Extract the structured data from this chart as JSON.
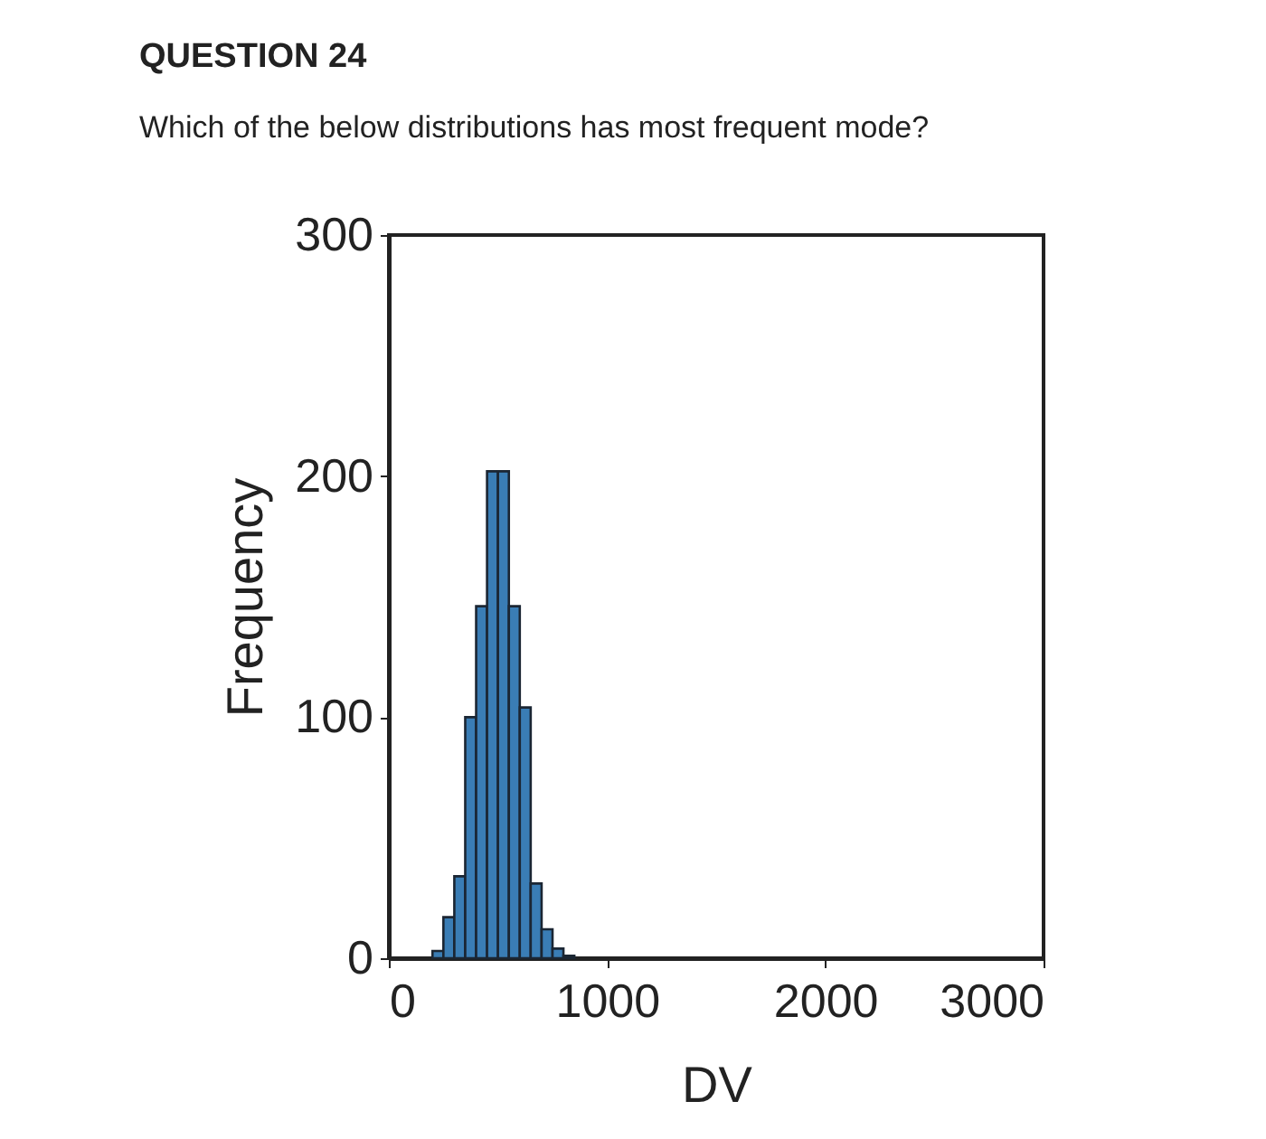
{
  "chart_data": {
    "type": "histogram",
    "title": "QUESTION 24",
    "subtitle": "Which of the below distributions has most frequent mode?",
    "xlabel": "DV",
    "ylabel": "Frequency",
    "bins": [
      200,
      250,
      300,
      350,
      400,
      450,
      500,
      550,
      600,
      650,
      700,
      750,
      800,
      850
    ],
    "values": [
      3,
      17,
      34,
      100,
      146,
      202,
      202,
      146,
      104,
      31,
      12,
      4,
      1
    ],
    "color": "#3a7db5",
    "xlim": [
      0,
      3000
    ],
    "xticks": [
      0,
      1000,
      2000,
      3000
    ],
    "ylim": [
      0,
      300
    ],
    "yticks": [
      0,
      100,
      200,
      300
    ]
  }
}
